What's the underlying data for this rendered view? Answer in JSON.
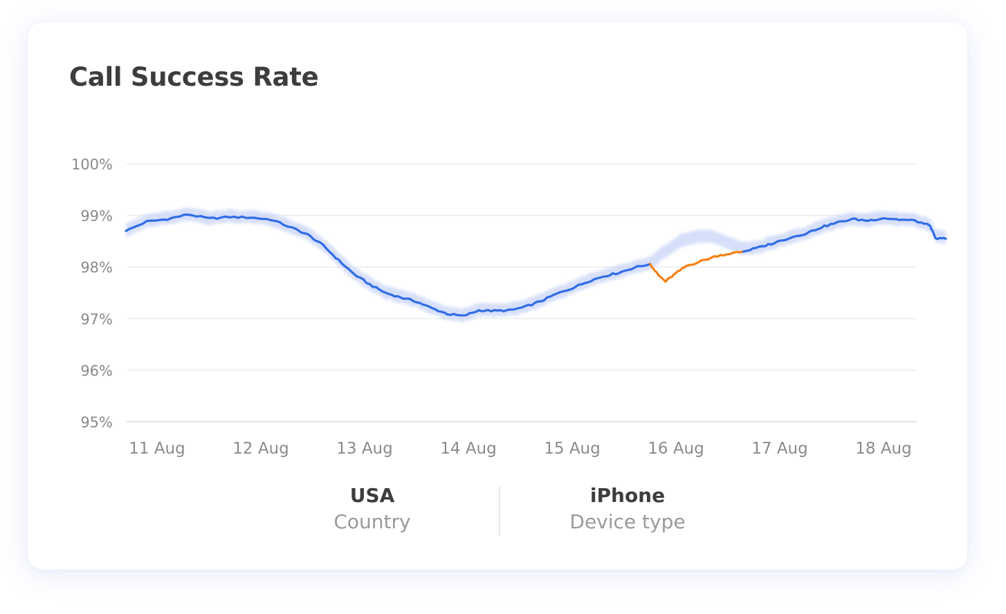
{
  "chart_data": {
    "type": "line",
    "title": "Call Success Rate",
    "ylim": [
      95,
      100
    ],
    "y_ticks": [
      "100%",
      "99%",
      "98%",
      "97%",
      "96%",
      "95%"
    ],
    "x_ticks": [
      "11 Aug",
      "12 Aug",
      "13 Aug",
      "14 Aug",
      "15 Aug",
      "16 Aug",
      "17 Aug",
      "18 Aug"
    ],
    "grid": true,
    "series": [
      {
        "color": "#2f6ce6",
        "band_color": "#c4d0f7",
        "points": [
          [
            10.7,
            98.7
          ],
          [
            10.9,
            98.88
          ],
          [
            11.1,
            98.93
          ],
          [
            11.3,
            99.02
          ],
          [
            11.5,
            98.94
          ],
          [
            11.7,
            98.97
          ],
          [
            11.9,
            98.96
          ],
          [
            12.1,
            98.92
          ],
          [
            12.3,
            98.76
          ],
          [
            12.45,
            98.63
          ],
          [
            12.6,
            98.42
          ],
          [
            12.75,
            98.13
          ],
          [
            12.9,
            97.86
          ],
          [
            13.05,
            97.66
          ],
          [
            13.2,
            97.5
          ],
          [
            13.35,
            97.41
          ],
          [
            13.5,
            97.33
          ],
          [
            13.65,
            97.2
          ],
          [
            13.8,
            97.09
          ],
          [
            13.95,
            97.05
          ],
          [
            14.1,
            97.16
          ],
          [
            14.25,
            97.15
          ],
          [
            14.4,
            97.16
          ],
          [
            14.55,
            97.23
          ],
          [
            14.7,
            97.34
          ],
          [
            14.85,
            97.48
          ],
          [
            15.0,
            97.59
          ],
          [
            15.15,
            97.72
          ],
          [
            15.3,
            97.82
          ],
          [
            15.45,
            97.89
          ],
          [
            15.6,
            97.99
          ],
          [
            15.75,
            98.06
          ]
        ]
      },
      {
        "color": "#f5800f",
        "points": [
          [
            15.75,
            98.06
          ],
          [
            15.83,
            97.84
          ],
          [
            15.9,
            97.72
          ],
          [
            16.0,
            97.88
          ],
          [
            16.1,
            98.02
          ],
          [
            16.25,
            98.12
          ],
          [
            16.4,
            98.22
          ],
          [
            16.55,
            98.27
          ],
          [
            16.65,
            98.3
          ]
        ]
      },
      {
        "color": "#2f6ce6",
        "band_color": "#c4d0f7",
        "points": [
          [
            16.65,
            98.3
          ],
          [
            16.8,
            98.38
          ],
          [
            16.95,
            98.47
          ],
          [
            17.1,
            98.57
          ],
          [
            17.25,
            98.65
          ],
          [
            17.4,
            98.77
          ],
          [
            17.55,
            98.86
          ],
          [
            17.7,
            98.93
          ],
          [
            17.85,
            98.9
          ],
          [
            18.0,
            98.95
          ],
          [
            18.15,
            98.92
          ],
          [
            18.3,
            98.9
          ],
          [
            18.45,
            98.8
          ],
          [
            18.5,
            98.55
          ],
          [
            18.6,
            98.55
          ]
        ]
      }
    ],
    "band_points": [
      [
        10.7,
        98.72
      ],
      [
        10.9,
        98.9
      ],
      [
        11.1,
        98.96
      ],
      [
        11.3,
        99.04
      ],
      [
        11.5,
        98.96
      ],
      [
        11.7,
        98.99
      ],
      [
        11.9,
        98.98
      ],
      [
        12.1,
        98.94
      ],
      [
        12.3,
        98.78
      ],
      [
        12.45,
        98.65
      ],
      [
        12.6,
        98.44
      ],
      [
        12.75,
        98.15
      ],
      [
        12.9,
        97.88
      ],
      [
        13.05,
        97.68
      ],
      [
        13.2,
        97.52
      ],
      [
        13.35,
        97.43
      ],
      [
        13.5,
        97.35
      ],
      [
        13.65,
        97.22
      ],
      [
        13.8,
        97.11
      ],
      [
        13.95,
        97.07
      ],
      [
        14.1,
        97.18
      ],
      [
        14.25,
        97.17
      ],
      [
        14.4,
        97.18
      ],
      [
        14.55,
        97.25
      ],
      [
        14.7,
        97.36
      ],
      [
        14.85,
        97.5
      ],
      [
        15.0,
        97.61
      ],
      [
        15.15,
        97.74
      ],
      [
        15.3,
        97.84
      ],
      [
        15.45,
        97.91
      ],
      [
        15.6,
        98.01
      ],
      [
        15.75,
        98.08
      ],
      [
        15.9,
        98.32
      ],
      [
        16.05,
        98.52
      ],
      [
        16.2,
        98.6
      ],
      [
        16.35,
        98.6
      ],
      [
        16.5,
        98.48
      ],
      [
        16.65,
        98.36
      ],
      [
        16.8,
        98.4
      ],
      [
        16.95,
        98.49
      ],
      [
        17.1,
        98.59
      ],
      [
        17.25,
        98.67
      ],
      [
        17.4,
        98.79
      ],
      [
        17.55,
        98.88
      ],
      [
        17.7,
        98.95
      ],
      [
        17.85,
        98.92
      ],
      [
        18.0,
        98.97
      ],
      [
        18.15,
        98.94
      ],
      [
        18.3,
        98.92
      ],
      [
        18.45,
        98.82
      ],
      [
        18.5,
        98.62
      ],
      [
        18.6,
        98.58
      ]
    ]
  },
  "filters": [
    {
      "value": "USA",
      "label": "Country"
    },
    {
      "value": "iPhone",
      "label": "Device type"
    }
  ]
}
